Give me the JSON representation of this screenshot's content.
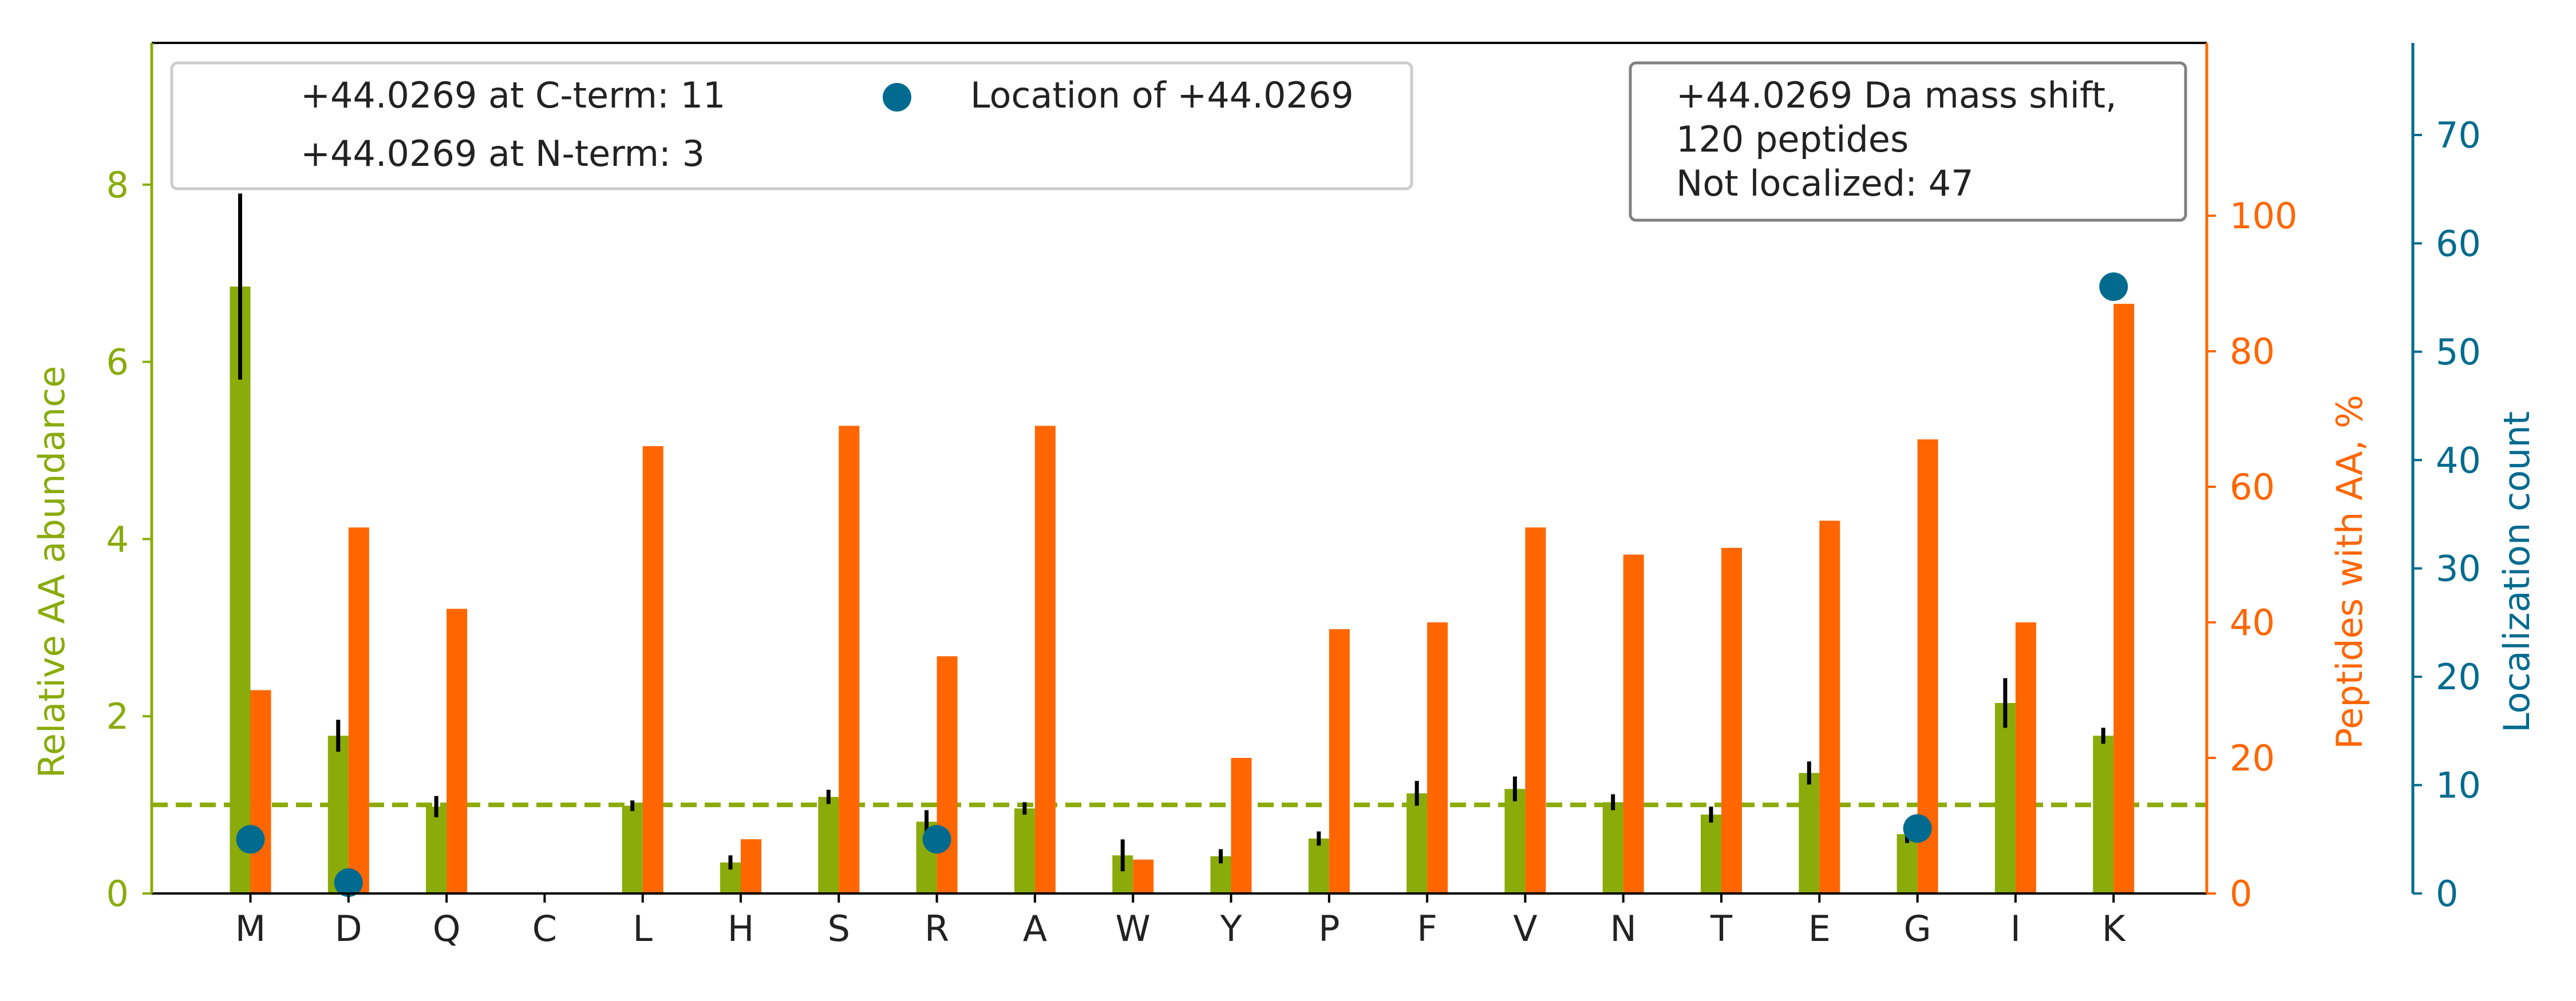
{
  "colors": {
    "abundance": "#8aab0a",
    "peptides": "#ff6600",
    "localization": "#006b8f",
    "axis": "#000000",
    "legend_border": "#cccccc",
    "info_border": "#808080"
  },
  "chart_data": {
    "type": "bar",
    "categories": [
      "M",
      "D",
      "Q",
      "C",
      "L",
      "H",
      "S",
      "R",
      "A",
      "W",
      "Y",
      "P",
      "F",
      "V",
      "N",
      "T",
      "E",
      "G",
      "I",
      "K"
    ],
    "series": [
      {
        "name": "Relative AA abundance",
        "axis": "left",
        "values": [
          6.85,
          1.78,
          0.98,
          0,
          0.99,
          0.35,
          1.09,
          0.81,
          0.96,
          0.43,
          0.42,
          0.62,
          1.13,
          1.18,
          1.03,
          0.89,
          1.36,
          0.67,
          2.15,
          1.78
        ],
        "error": [
          1.05,
          0.18,
          0.12,
          0,
          0.06,
          0.08,
          0.08,
          0.13,
          0.07,
          0.18,
          0.08,
          0.08,
          0.14,
          0.14,
          0.09,
          0.09,
          0.13,
          0.1,
          0.28,
          0.09
        ]
      },
      {
        "name": "Peptides with AA, %",
        "axis": "right",
        "values": [
          30,
          54,
          42,
          0,
          66,
          8,
          69,
          35,
          69,
          5,
          20,
          39,
          40,
          54,
          50,
          51,
          55,
          67,
          40,
          87
        ]
      },
      {
        "name": "Location of +44.0269",
        "axis": "right2",
        "type": "scatter",
        "points": [
          {
            "category": "M",
            "value": 5
          },
          {
            "category": "D",
            "value": 1
          },
          {
            "category": "R",
            "value": 5
          },
          {
            "category": "G",
            "value": 6
          },
          {
            "category": "K",
            "value": 56
          }
        ]
      }
    ],
    "reference_line": {
      "axis": "left",
      "value": 1,
      "style": "dashed"
    },
    "axes": {
      "left": {
        "label": "Relative AA abundance",
        "ylim": [
          0,
          9.6
        ],
        "ticks": [
          0,
          2,
          4,
          6,
          8
        ]
      },
      "right": {
        "label": "Peptides with AA, %",
        "ylim": [
          0,
          125.5
        ],
        "ticks": [
          0,
          20,
          40,
          60,
          80,
          100
        ]
      },
      "right2": {
        "label": "Localization count",
        "ylim": [
          0,
          78.5
        ],
        "ticks": [
          0,
          10,
          20,
          30,
          40,
          50,
          60,
          70
        ]
      }
    },
    "legend": {
      "position": "top-left",
      "entries": [
        "+44.0269 at C-term: 11",
        "+44.0269 at N-term: 3",
        "Location of +44.0269"
      ]
    },
    "info_box": {
      "position": "top-right",
      "lines": [
        "+44.0269 Da mass shift,",
        "120 peptides",
        "Not localized: 47"
      ]
    }
  }
}
